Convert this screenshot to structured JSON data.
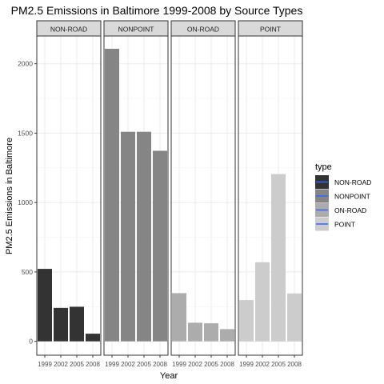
{
  "chart_data": {
    "type": "bar",
    "title": "PM2.5 Emissions in Baltimore 1999-2008 by Source Types",
    "xlabel": "Year",
    "ylabel": "PM2.5 Emissions in Baltimore",
    "ylim": [
      -100,
      2200
    ],
    "yticks": [
      0,
      500,
      1000,
      1500,
      2000
    ],
    "categories": [
      "1999",
      "2002",
      "2005",
      "2008"
    ],
    "grid": true,
    "legend": {
      "title": "type",
      "position": "right",
      "entries": [
        "NON-ROAD",
        "NONPOINT",
        "ON-ROAD",
        "POINT"
      ]
    },
    "series": [
      {
        "name": "NON-ROAD",
        "color": "#333333",
        "values": [
          522,
          241,
          249,
          55
        ]
      },
      {
        "name": "NONPOINT",
        "color": "#858585",
        "values": [
          2108,
          1510,
          1510,
          1373
        ]
      },
      {
        "name": "ON-ROAD",
        "color": "#acacac",
        "values": [
          347,
          134,
          130,
          88
        ]
      },
      {
        "name": "POINT",
        "color": "#cccccc",
        "values": [
          297,
          570,
          1205,
          345
        ]
      }
    ],
    "legend_key_line_color": "#3366ff"
  }
}
